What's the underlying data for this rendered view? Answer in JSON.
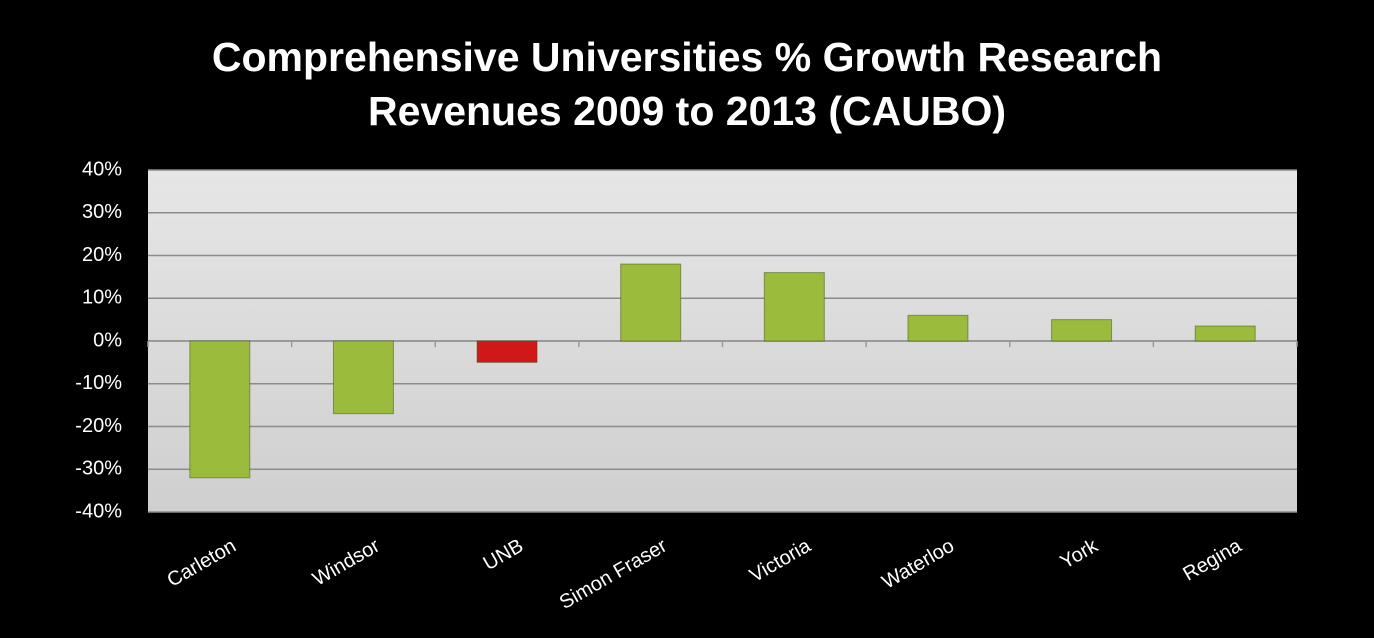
{
  "chart_data": {
    "type": "bar",
    "title": "Comprehensive Universities % Growth Research Revenues 2009 to 2013 (CAUBO)",
    "categories": [
      "Carleton",
      "Windsor",
      "UNB",
      "Simon Fraser",
      "Victoria",
      "Waterloo",
      "York",
      "Regina"
    ],
    "values": [
      -32,
      -17,
      -5,
      18,
      16,
      6,
      5,
      3.5
    ],
    "colors": [
      "#9bbb3c",
      "#9bbb3c",
      "#d01818",
      "#9bbb3c",
      "#9bbb3c",
      "#9bbb3c",
      "#9bbb3c",
      "#9bbb3c"
    ],
    "ylim": [
      -40,
      40
    ],
    "yticks": [
      {
        "value": -40,
        "label": "-40%"
      },
      {
        "value": -30,
        "label": "-30%"
      },
      {
        "value": -20,
        "label": "-20%"
      },
      {
        "value": -10,
        "label": "-10%"
      },
      {
        "value": 0,
        "label": "0%"
      },
      {
        "value": 10,
        "label": "10%"
      },
      {
        "value": 20,
        "label": "20%"
      },
      {
        "value": 30,
        "label": "30%"
      },
      {
        "value": 40,
        "label": "40%"
      }
    ],
    "grid": true
  }
}
